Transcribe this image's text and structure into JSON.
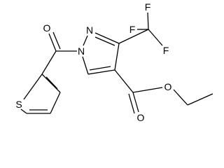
{
  "atoms": [
    {
      "label": "O"
    },
    {
      "label": "N"
    },
    {
      "label": "N"
    },
    {
      "label": "F"
    },
    {
      "label": "F"
    },
    {
      "label": "F"
    },
    {
      "label": "S"
    },
    {
      "label": "O"
    },
    {
      "label": "O"
    }
  ]
}
